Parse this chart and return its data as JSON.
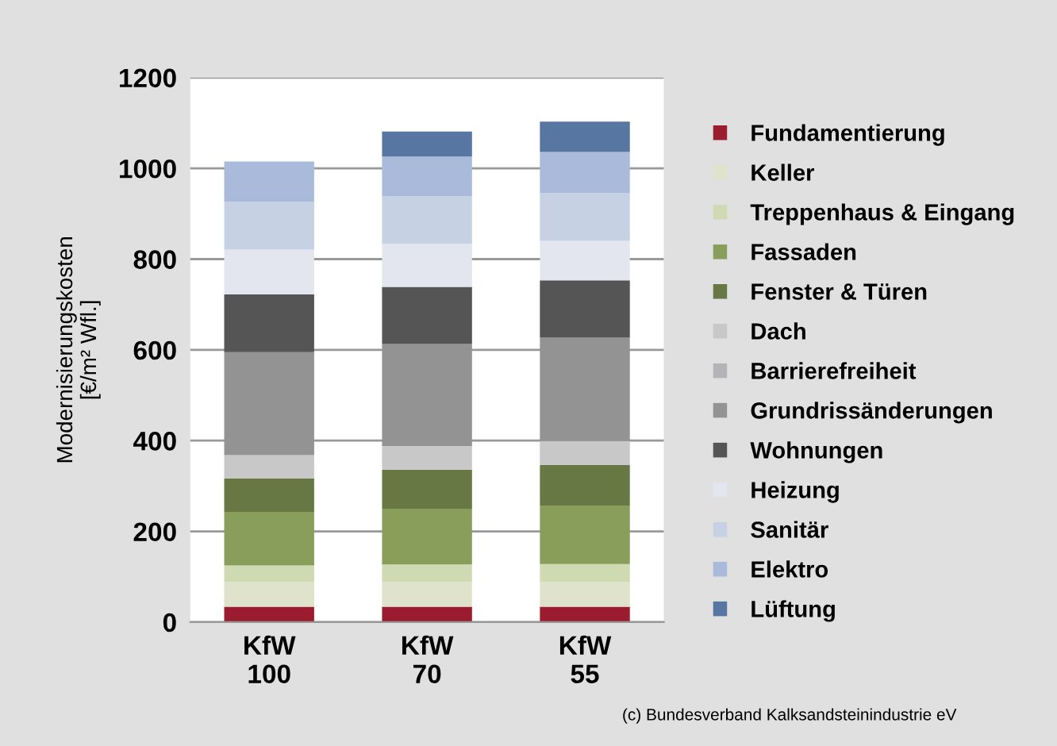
{
  "chart_data": {
    "type": "bar",
    "stacked": true,
    "ylabel": "Modernisierungskosten\n[€/m² Wfl.]",
    "categories": [
      "KfW\n100",
      "KfW\n70",
      "KfW\n55"
    ],
    "ylim": [
      0,
      1200
    ],
    "yticks": [
      0,
      200,
      400,
      600,
      800,
      1000,
      1200
    ],
    "grid": "y",
    "legend": "right",
    "annotations": [
      "(c) Bundesverband Kalksandsteinindustrie eV"
    ],
    "series": [
      {
        "name": "Fundamentierung",
        "color": "#9b1c2e",
        "values": [
          34,
          34,
          34
        ]
      },
      {
        "name": "Keller",
        "color": "#dfe3cb",
        "values": [
          55,
          55,
          55
        ]
      },
      {
        "name": "Treppenhaus & Eingang",
        "color": "#cfdab3",
        "values": [
          36,
          38,
          39
        ]
      },
      {
        "name": "Fassaden",
        "color": "#8a9e5c",
        "values": [
          118,
          123,
          129
        ]
      },
      {
        "name": "Fenster & Türen",
        "color": "#677845",
        "values": [
          74,
          86,
          89
        ]
      },
      {
        "name": "Dach",
        "color": "#c8c8c8",
        "values": [
          51,
          52,
          53
        ]
      },
      {
        "name": "Barrierefreiheit",
        "color": "#b4b4b8",
        "values": [
          0,
          0,
          0
        ]
      },
      {
        "name": "Grundrissänderungen",
        "color": "#939393",
        "values": [
          227,
          225,
          228
        ]
      },
      {
        "name": "Wohnungen",
        "color": "#555555",
        "values": [
          127,
          126,
          126
        ]
      },
      {
        "name": "Heizung",
        "color": "#e3e6ee",
        "values": [
          99,
          95,
          87
        ]
      },
      {
        "name": "Sanitär",
        "color": "#c6d1e4",
        "values": [
          105,
          105,
          106
        ]
      },
      {
        "name": "Elektro",
        "color": "#a9badb",
        "values": [
          89,
          87,
          90
        ]
      },
      {
        "name": "Lüftung",
        "color": "#5876a2",
        "values": [
          0,
          55,
          67
        ]
      }
    ]
  }
}
